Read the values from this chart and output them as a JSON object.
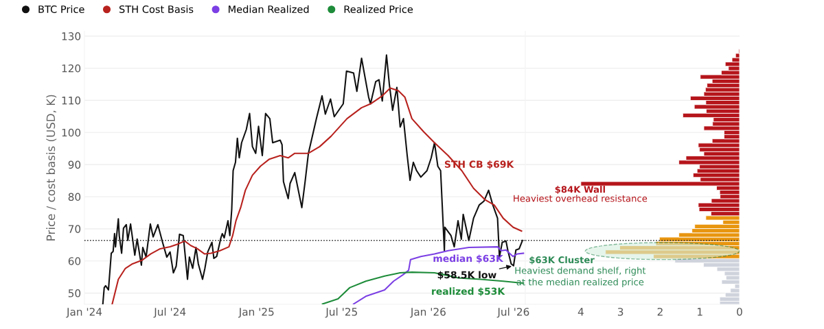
{
  "chart_data": [
    {
      "type": "line",
      "ylabel": "Price / cost basis (USD, K)",
      "legend": "top left",
      "grid": "y",
      "line_style": "solid",
      "xlim": [
        "2024-01-01",
        "2026-07-26"
      ],
      "ylim": [
        46.5,
        131.5
      ],
      "xticks": [
        {
          "value": "2024-01-01",
          "label": "Jan '24"
        },
        {
          "value": "2024-07-01",
          "label": "Jul '24"
        },
        {
          "value": "2025-01-01",
          "label": "Jan '25"
        },
        {
          "value": "2025-07-01",
          "label": "Jul '25"
        },
        {
          "value": "2026-01-01",
          "label": "Jan '26"
        },
        {
          "value": "2026-07-01",
          "label": "Jul '26"
        }
      ],
      "yticks": [
        50,
        60,
        70,
        80,
        90,
        100,
        110,
        120,
        130
      ],
      "ref_lines": [
        {
          "axis": "y",
          "value": 66.4,
          "color": "#222222",
          "line_style": "dotted"
        }
      ],
      "series": [
        {
          "name": "BTC Price",
          "color": "#111111",
          "x": [
            "2024-02-09",
            "2024-02-12",
            "2024-02-15",
            "2024-02-21",
            "2024-02-27",
            "2024-03-02",
            "2024-03-05",
            "2024-03-07",
            "2024-03-13",
            "2024-03-15",
            "2024-03-20",
            "2024-03-24",
            "2024-03-30",
            "2024-04-02",
            "2024-04-08",
            "2024-04-12",
            "2024-04-17",
            "2024-04-22",
            "2024-05-01",
            "2024-05-04",
            "2024-05-11",
            "2024-05-20",
            "2024-05-26",
            "2024-06-05",
            "2024-06-15",
            "2024-06-24",
            "2024-07-01",
            "2024-07-08",
            "2024-07-14",
            "2024-07-21",
            "2024-07-29",
            "2024-08-07",
            "2024-08-11",
            "2024-08-18",
            "2024-08-25",
            "2024-08-30",
            "2024-09-08",
            "2024-09-13",
            "2024-09-19",
            "2024-09-28",
            "2024-10-02",
            "2024-10-08",
            "2024-10-17",
            "2024-10-20",
            "2024-10-24",
            "2024-11-01",
            "2024-11-05",
            "2024-11-09",
            "2024-11-12",
            "2024-11-17",
            "2024-11-21",
            "2024-11-25",
            "2024-11-30",
            "2024-12-10",
            "2024-12-17",
            "2024-12-23",
            "2024-12-30",
            "2025-01-05",
            "2025-01-13",
            "2025-01-20",
            "2025-01-29",
            "2025-02-04",
            "2025-02-20",
            "2025-02-24",
            "2025-02-27",
            "2025-03-09",
            "2025-03-13",
            "2025-03-23",
            "2025-04-07",
            "2025-04-14",
            "2025-04-21",
            "2025-05-08",
            "2025-05-20",
            "2025-05-27",
            "2025-06-07",
            "2025-06-15",
            "2025-07-04",
            "2025-07-11",
            "2025-07-26",
            "2025-08-02",
            "2025-08-12",
            "2025-08-27",
            "2025-08-31",
            "2025-09-11",
            "2025-09-18",
            "2025-09-25",
            "2025-10-04",
            "2025-10-10",
            "2025-10-17",
            "2025-10-26",
            "2025-11-02",
            "2025-11-09",
            "2025-11-17",
            "2025-11-23",
            "2025-11-30",
            "2025-12-07",
            "2025-12-16",
            "2025-12-29",
            "2026-01-07",
            "2026-01-14",
            "2026-01-21",
            "2026-01-27",
            "2026-02-04",
            "2026-02-05",
            "2026-02-18",
            "2026-02-25",
            "2026-03-05",
            "2026-03-12",
            "2026-03-16",
            "2026-03-28",
            "2026-04-07",
            "2026-04-19",
            "2026-04-29",
            "2026-05-09",
            "2026-05-18",
            "2026-05-28",
            "2026-06-01",
            "2026-06-07",
            "2026-06-15",
            "2026-06-19",
            "2026-06-26",
            "2026-07-01",
            "2026-07-06",
            "2026-07-13",
            "2026-07-20"
          ],
          "values": [
            46.5,
            51.7,
            52.3,
            51.0,
            62.4,
            63.0,
            68.5,
            64.4,
            73.1,
            67.8,
            62.4,
            70.2,
            71.3,
            66.4,
            71.5,
            67.2,
            61.8,
            66.8,
            58.7,
            64.2,
            61.2,
            71.5,
            67.5,
            71.3,
            65.8,
            61.2,
            62.8,
            56.3,
            58.4,
            68.3,
            67.9,
            54.3,
            61.2,
            57.7,
            64.2,
            59.1,
            54.3,
            57.7,
            62.8,
            65.8,
            60.8,
            61.4,
            67.2,
            68.5,
            67.2,
            72.5,
            67.9,
            76.0,
            88.1,
            90.7,
            98.2,
            92.1,
            96.8,
            100.9,
            105.9,
            95.6,
            93.5,
            101.9,
            92.8,
            105.9,
            104.3,
            96.8,
            97.6,
            96.2,
            84.7,
            79.4,
            84.1,
            87.5,
            76.6,
            84.7,
            93.5,
            104.3,
            111.4,
            105.7,
            110.4,
            104.9,
            108.9,
            119.1,
            118.5,
            112.8,
            123.1,
            111.0,
            108.9,
            115.8,
            116.4,
            109.8,
            124.1,
            115.0,
            106.9,
            114.0,
            101.7,
            104.3,
            92.8,
            85.1,
            90.7,
            88.1,
            86.1,
            88.1,
            92.1,
            96.8,
            89.5,
            88.1,
            63.2,
            70.5,
            67.9,
            64.4,
            72.5,
            66.8,
            74.5,
            66.4,
            73.3,
            77.4,
            78.6,
            82.0,
            77.4,
            73.3,
            61.2,
            65.8,
            66.2,
            63.2,
            59.1,
            58.5,
            63.4,
            63.8,
            66.4
          ]
        },
        {
          "name": "STH Cost Basis",
          "color": "#b8221e",
          "x": [
            "2024-02-29",
            "2024-03-13",
            "2024-03-28",
            "2024-04-12",
            "2024-05-02",
            "2024-05-21",
            "2024-06-10",
            "2024-07-01",
            "2024-07-20",
            "2024-08-01",
            "2024-08-14",
            "2024-08-28",
            "2024-09-12",
            "2024-09-26",
            "2024-10-15",
            "2024-11-03",
            "2024-11-11",
            "2024-11-18",
            "2024-11-28",
            "2024-12-08",
            "2024-12-23",
            "2025-01-09",
            "2025-01-28",
            "2025-02-20",
            "2025-03-09",
            "2025-03-23",
            "2025-04-21",
            "2025-05-15",
            "2025-06-08",
            "2025-07-12",
            "2025-08-12",
            "2025-08-31",
            "2025-09-25",
            "2025-10-12",
            "2025-10-29",
            "2025-11-12",
            "2025-11-27",
            "2025-12-22",
            "2026-01-14",
            "2026-02-12",
            "2026-03-13",
            "2026-04-07",
            "2026-05-02",
            "2026-05-21",
            "2026-06-09",
            "2026-06-30",
            "2026-07-18"
          ],
          "values": [
            46.6,
            54.3,
            57.7,
            59.1,
            60.2,
            62.2,
            63.8,
            64.4,
            65.4,
            66.2,
            64.8,
            63.8,
            62.2,
            62.4,
            63.2,
            64.4,
            67.9,
            72.5,
            76.6,
            82.0,
            86.7,
            89.5,
            91.7,
            92.8,
            92.1,
            93.5,
            93.5,
            95.6,
            98.8,
            104.3,
            107.7,
            108.9,
            111.4,
            113.8,
            113.0,
            111.0,
            104.3,
            100.2,
            96.8,
            92.8,
            88.1,
            82.6,
            79.0,
            77.4,
            73.3,
            70.5,
            69.3
          ]
        },
        {
          "name": "Median Realized",
          "color": "#7b3fe4",
          "x": [
            "2025-07-26",
            "2025-08-21",
            "2025-09-30",
            "2025-10-19",
            "2025-11-08",
            "2025-11-20",
            "2025-11-24",
            "2025-12-16",
            "2026-01-14",
            "2026-02-12",
            "2026-03-28",
            "2026-05-28",
            "2026-06-05",
            "2026-06-15",
            "2026-06-30",
            "2026-07-09",
            "2026-07-22"
          ],
          "values": [
            46.6,
            49.0,
            51.0,
            53.7,
            55.7,
            57.1,
            60.4,
            61.4,
            62.2,
            63.2,
            64.2,
            64.4,
            63.2,
            63.4,
            61.4,
            62.2,
            62.4
          ]
        },
        {
          "name": "Realized Price",
          "color": "#1e8c3a",
          "x": [
            "2025-05-21",
            "2025-06-23",
            "2025-07-18",
            "2025-08-21",
            "2025-09-30",
            "2025-11-02",
            "2025-11-27",
            "2026-01-14",
            "2026-02-04",
            "2026-03-05",
            "2026-04-22",
            "2026-06-09",
            "2026-07-22"
          ],
          "values": [
            46.6,
            48.2,
            51.7,
            53.7,
            55.3,
            56.3,
            56.5,
            56.3,
            55.7,
            54.7,
            54.3,
            53.7,
            53.1
          ]
        }
      ],
      "annotations": [
        "STH CB $69K",
        "median $63K",
        {
          "text": "$58.5K low",
          "x": "2026-07-01",
          "y": 58.5
        },
        "realized $53K"
      ]
    },
    {
      "type": "histogram",
      "orientation": "horizontal",
      "grid": "y",
      "tick_labels": "x",
      "xlim": [
        5.4,
        0
      ],
      "ylim": [
        46.5,
        131.5
      ],
      "xticks": [
        4,
        3,
        2,
        1,
        0
      ],
      "bins": [
        46.13,
        47.46,
        48.79,
        50.12,
        51.45,
        52.78,
        54.11,
        55.44,
        56.77,
        58.1,
        59.43,
        60.76,
        62.09,
        63.42,
        64.75,
        66.08,
        67.41,
        68.74,
        70.07,
        71.4,
        72.73,
        74.06,
        75.39,
        76.72,
        78.05,
        79.38,
        80.71,
        82.04,
        83.37,
        84.7,
        86.03,
        87.36,
        88.69,
        90.02,
        91.35,
        92.68,
        94.01,
        95.34,
        96.67,
        98.0,
        99.33,
        100.66,
        101.99,
        103.32,
        104.65,
        105.98,
        107.31,
        108.64,
        109.97,
        111.3,
        112.63,
        113.96,
        115.29,
        116.62,
        117.95,
        119.28,
        120.61,
        121.94,
        123.27,
        124.6,
        125.93
      ],
      "values": [
        0.5,
        0.5,
        0.36,
        0.23,
        0.12,
        0.45,
        0.34,
        0.38,
        0.57,
        0.91,
        1.63,
        2.17,
        3.38,
        3.02,
        2.11,
        2.02,
        1.53,
        1.2,
        1.13,
        0.42,
        0.85,
        0.72,
        1.02,
        1.04,
        0.71,
        0.49,
        0.5,
        0.58,
        4.0,
        0.99,
        1.17,
        1.07,
        1.01,
        1.53,
        1.35,
        0.9,
        1.01,
        1.04,
        0.69,
        0.39,
        0.39,
        0.9,
        0.68,
        0.66,
        1.43,
        0.84,
        1.14,
        0.85,
        1.24,
        0.9,
        0.86,
        0.82,
        0.69,
        0.99,
        0.46,
        0.28,
        0.36,
        0.19,
        0.1,
        0.02
      ],
      "colors": [
        "#cfd3dc",
        "#cfd3dc",
        "#cfd3dc",
        "#cfd3dc",
        "#cfd3dc",
        "#cfd3dc",
        "#cfd3dc",
        "#cfd3dc",
        "#cfd3dc",
        "#cfd3dc",
        "#cfd3dc",
        "#e8950f",
        "#e8950f",
        "#e8950f",
        "#e8950f",
        "#e8950f",
        "#e8950f",
        "#e8950f",
        "#e8950f",
        "#e8950f",
        "#e8950f",
        "#b5151b",
        "#b5151b",
        "#b5151b",
        "#b5151b",
        "#b5151b",
        "#b5151b",
        "#b5151b",
        "#b5151b",
        "#b5151b",
        "#b5151b",
        "#b5151b",
        "#b5151b",
        "#b5151b",
        "#b5151b",
        "#b5151b",
        "#b5151b",
        "#b5151b",
        "#b5151b",
        "#b5151b",
        "#b5151b",
        "#b5151b",
        "#b5151b",
        "#b5151b",
        "#b5151b",
        "#b5151b",
        "#b5151b",
        "#b5151b",
        "#b5151b",
        "#b5151b",
        "#b5151b",
        "#b5151b",
        "#b5151b",
        "#b5151b",
        "#b5151b",
        "#b5151b",
        "#b5151b",
        "#b5151b",
        "#b5151b",
        "#b5151b"
      ],
      "ref_lines": [
        {
          "axis": "y",
          "value": 66.4,
          "color": "#222222",
          "line_style": "dotted"
        }
      ],
      "annotations": [
        "$84K Wall",
        "Heaviest overhead resistance",
        "$63K Cluster",
        "Heaviest demand shelf, right\nat the median realized price"
      ]
    }
  ]
}
